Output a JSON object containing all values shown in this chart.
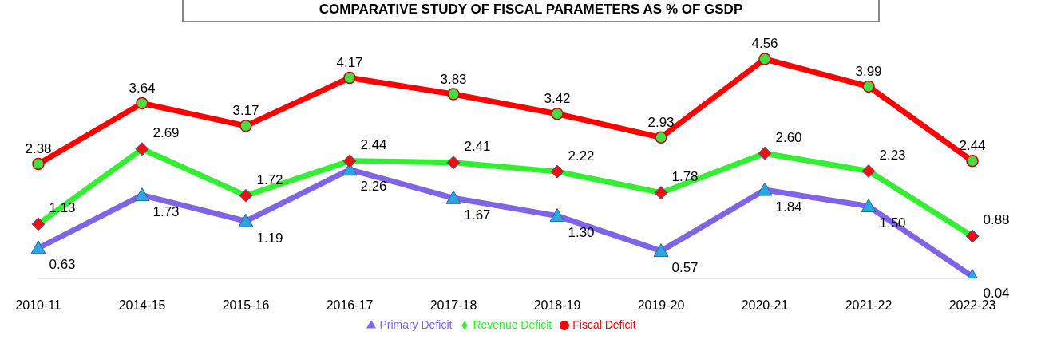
{
  "chart_data": {
    "type": "line",
    "title": "COMPARATIVE STUDY OF FISCAL PARAMETERS AS % OF GSDP",
    "categories": [
      "2010-11",
      "2014-15",
      "2015-16",
      "2016-17",
      "2017-18",
      "2018-19",
      "2019-20",
      "2020-21",
      "2021-22",
      "2022-23"
    ],
    "tick_labels": "x",
    "legend": "bottom",
    "grid": false,
    "series": [
      {
        "name": "Primary Deficit",
        "color": "#8064e8",
        "marker": "triangle",
        "values": [
          0.63,
          1.73,
          1.19,
          2.26,
          1.67,
          1.3,
          0.57,
          1.84,
          1.5,
          0.04
        ],
        "value_labels": [
          "0.63",
          "1.73",
          "1.19",
          "2.26",
          "1.67",
          "1.30",
          "0.57",
          "1.84",
          "1.50",
          "0.04"
        ]
      },
      {
        "name": "Revenue Deficit",
        "color": "#33ee33",
        "marker": "diamond",
        "values": [
          1.13,
          2.69,
          1.72,
          2.44,
          2.41,
          2.22,
          1.78,
          2.6,
          2.23,
          0.88
        ],
        "value_labels": [
          "1.13",
          "2.69",
          "1.72",
          "2.44",
          "2.41",
          "2.22",
          "1.78",
          "2.60",
          "2.23",
          "0.88"
        ]
      },
      {
        "name": "Fiscal Deficit",
        "color": "#ff0000",
        "marker": "circle",
        "values": [
          2.38,
          3.64,
          3.17,
          4.17,
          3.83,
          3.42,
          2.93,
          4.56,
          3.99,
          2.44
        ],
        "value_labels": [
          "2.38",
          "3.64",
          "3.17",
          "4.17",
          "3.83",
          "3.42",
          "2.93",
          "4.56",
          "3.99",
          "2.44"
        ]
      }
    ]
  }
}
